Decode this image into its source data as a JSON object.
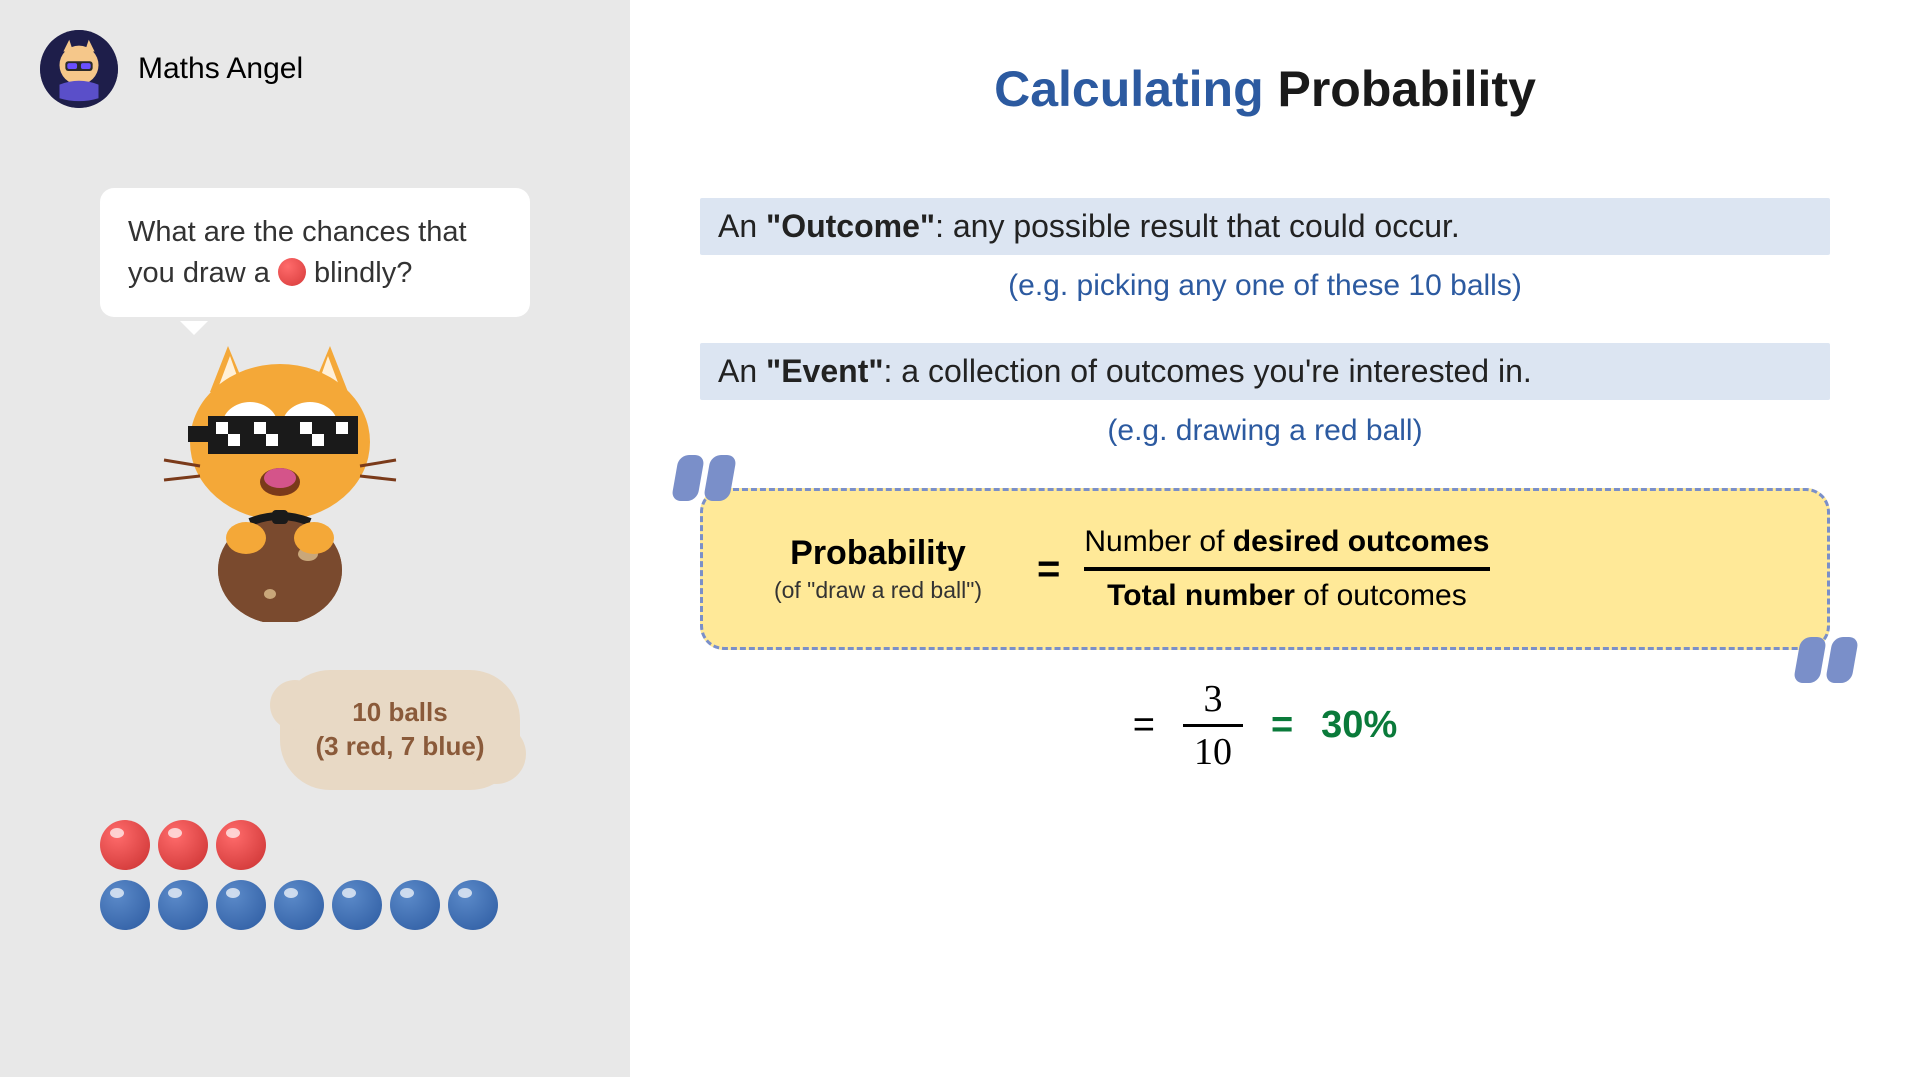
{
  "brand": "Maths Angel",
  "bubble": {
    "line1": "What are the chances that",
    "line2a": "you draw a ",
    "line2b": " blindly?"
  },
  "balls_info": {
    "line1": "10 balls",
    "line2": "(3 red, 7 blue)"
  },
  "balls": {
    "red_count": 3,
    "blue_count": 7,
    "red_color": "#d63a3a",
    "blue_color": "#2c5aa0"
  },
  "title": {
    "part1": "Calculating ",
    "part2": "Probability"
  },
  "outcome": {
    "prefix": "An ",
    "term": "\"Outcome\"",
    "def": ": any possible result that could occur.",
    "example": "(e.g. picking any one of these 10 balls)"
  },
  "event": {
    "prefix": "An ",
    "term": "\"Event\"",
    "def": ": a collection of outcomes you're interested in.",
    "example": "(e.g. drawing a red ball)"
  },
  "formula": {
    "label": "Probability",
    "sub": "(of \"draw a red ball\")",
    "eq": "=",
    "numerator_a": "Number of ",
    "numerator_b": "desired outcomes",
    "denominator_a": "Total number",
    "denominator_b": " of outcomes"
  },
  "result": {
    "eq1": "=",
    "num": "3",
    "den": "10",
    "eq2": "=",
    "percent": "30%"
  },
  "colors": {
    "title_accent": "#2c5aa0",
    "highlight_bg": "#dce5f2",
    "formula_bg": "#ffe998",
    "formula_border": "#7a8fc9",
    "result_green": "#0a7a3a"
  }
}
